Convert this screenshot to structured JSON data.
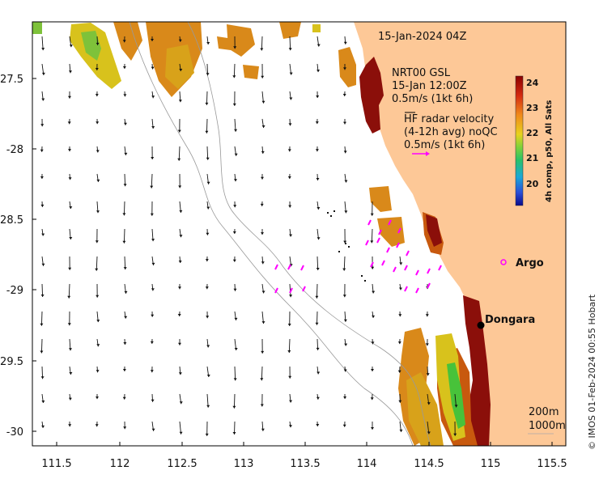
{
  "map": {
    "date_label": "15-Jan-2024 04Z",
    "nrt_label": "NRT00 GSL",
    "nrt_time": "15-Jan 12:00Z",
    "nrt_scale": "0.5m/s (1kt 6h)",
    "hf_title": "HF radar velocity",
    "hf_avg": "(4-12h avg) noQC",
    "hf_scale": "0.5m/s (1kt 6h)",
    "argo_label": "Argo",
    "town_label": "Dongara",
    "isobath_200": "200m",
    "isobath_1000": "1000m",
    "credit": "© IMOS 01-Feb-2024 00:55 Hobart",
    "colorbar_title": "4h comp, p50, All Sats",
    "colorbar_ticks": [
      "24",
      "23",
      "22",
      "21",
      "20"
    ],
    "x_ticks": [
      "111.5",
      "112",
      "112.5",
      "113",
      "113.5",
      "114",
      "114.5",
      "115",
      "115.5"
    ],
    "y_ticks": [
      "-27.5",
      "-28",
      "-28.5",
      "-29",
      "-29.5",
      "-30"
    ],
    "colors": {
      "land": "#fdc897",
      "sst_warm": "#8b0f0a",
      "sst_mid": "#d9891a",
      "sst_cool": "#d8c21c",
      "sst_green": "#48c23a",
      "hf_arrow": "#ff00ff",
      "arrow": "#111111"
    }
  }
}
